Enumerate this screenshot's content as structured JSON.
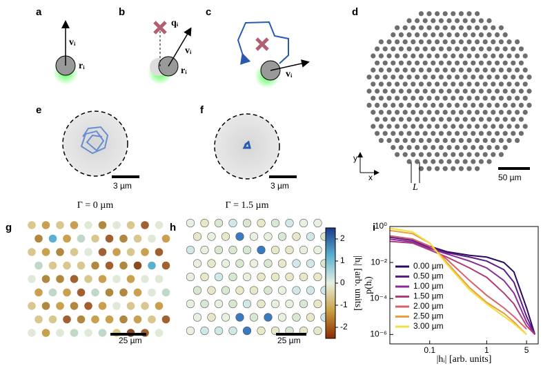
{
  "panels": {
    "a": "a",
    "b": "b",
    "c": "c",
    "d": "d",
    "e": "e",
    "f": "f",
    "g": "g",
    "h": "h",
    "i": "i"
  },
  "schematic": {
    "velocity": "vᵢ",
    "position": "rᵢ",
    "target": "qᵢ"
  },
  "panel_d": {
    "scale": "50 µm",
    "spacing": "L",
    "x_axis": "x",
    "y_axis": "y"
  },
  "panel_e": {
    "scale": "3 µm",
    "caption": "Γ = 0 µm"
  },
  "panel_f": {
    "scale": "3 µm",
    "caption": "Γ = 1.5 µm"
  },
  "panel_g": {
    "scale": "25 µm"
  },
  "panel_h": {
    "scale": "25 µm"
  },
  "colorbar": {
    "label": "|hᵢ| [arb. units]",
    "ylim": [
      -2.5,
      2.5
    ],
    "yticks": [
      -2,
      -1,
      0,
      1,
      2
    ]
  },
  "chart_data": {
    "type": "line",
    "x_label": "|hᵢ| [arb. units]",
    "y_label": "p(hᵢ)",
    "log_x": true,
    "log_y": true,
    "xlim": [
      0.02,
      8
    ],
    "xticks": [
      0.1,
      1,
      5
    ],
    "ylim": [
      3e-07,
      1
    ],
    "yticks": [
      {
        "value": 1,
        "label": "10⁰"
      },
      {
        "value": 0.01,
        "label": "10⁻²"
      },
      {
        "value": 0.0001,
        "label": "10⁻⁴"
      },
      {
        "value": 1e-06,
        "label": "10⁻⁶"
      }
    ],
    "legend": "lower-left",
    "x": [
      0.02,
      0.05,
      0.1,
      0.2,
      0.5,
      1,
      2,
      3,
      5,
      7
    ],
    "series": [
      {
        "name": "0.00 µm",
        "color": "#2a0a5e",
        "values": [
          0.3,
          0.2,
          0.08,
          0.04,
          0.025,
          0.02,
          0.01,
          0.003,
          3e-05,
          1e-06
        ]
      },
      {
        "name": "0.50 µm",
        "color": "#5b1a8a",
        "values": [
          0.25,
          0.17,
          0.07,
          0.035,
          0.02,
          0.012,
          0.004,
          0.0008,
          1e-05,
          1e-06
        ]
      },
      {
        "name": "1.00 µm",
        "color": "#8a2a9a",
        "values": [
          0.2,
          0.14,
          0.06,
          0.03,
          0.012,
          0.005,
          0.001,
          0.0002,
          5e-06,
          1e-06
        ]
      },
      {
        "name": "1.50 µm",
        "color": "#b03a7a",
        "values": [
          0.15,
          0.12,
          0.05,
          0.02,
          0.005,
          0.0015,
          0.0002,
          5e-05,
          3e-06,
          1e-06
        ]
      },
      {
        "name": "2.00 µm",
        "color": "#d8606a",
        "values": [
          0.3,
          0.2,
          0.08,
          0.015,
          0.001,
          0.00015,
          3e-05,
          1e-05,
          2e-06,
          null
        ]
      },
      {
        "name": "2.50 µm",
        "color": "#e8a040",
        "values": [
          0.6,
          0.4,
          0.12,
          0.01,
          0.0004,
          6e-05,
          1.5e-05,
          5e-06,
          1e-06,
          null
        ]
      },
      {
        "name": "3.00 µm",
        "color": "#f0e040",
        "values": [
          0.8,
          0.5,
          0.12,
          0.008,
          0.0003,
          5e-05,
          1e-05,
          4e-06,
          1e-06,
          null
        ]
      }
    ]
  }
}
